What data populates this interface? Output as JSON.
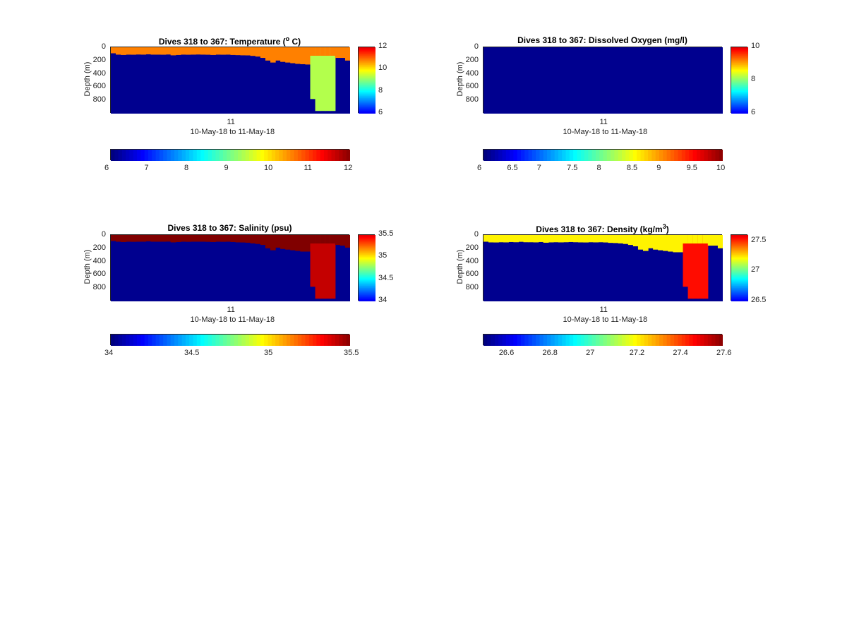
{
  "chart_data": [
    {
      "type": "heatmap",
      "title": "Dives 318 to 367: Temperature (",
      "title_sup": "o",
      "title_suffix": " C)",
      "ylabel": "Depth (m)",
      "xtick": "11",
      "xlabel": "10-May-18 to 11-May-18",
      "yticks": [
        "0",
        "200",
        "400",
        "600",
        "800"
      ],
      "ylim": [
        0,
        1000
      ],
      "clim": [
        6,
        12
      ],
      "vbar_ticks": [
        "12",
        "10",
        "8",
        "6"
      ],
      "hbar_ticks": [
        "6",
        "7",
        "8",
        "9",
        "10",
        "11",
        "12"
      ],
      "surface_value": 10.5,
      "deep_value": 9.3,
      "colormap": "jet",
      "background_color": "#00008f",
      "profile_depths_m": [
        90,
        110,
        115,
        110,
        112,
        108,
        110,
        105,
        110,
        110,
        112,
        108,
        120,
        115,
        110,
        112,
        110,
        108,
        110,
        112,
        115,
        110,
        112,
        110,
        115,
        118,
        120,
        122,
        130,
        140,
        160,
        200,
        230,
        200,
        220,
        230,
        240,
        250,
        255,
        260,
        780,
        960,
        960,
        960,
        960,
        160,
        160,
        200
      ]
    },
    {
      "type": "heatmap",
      "title": "Dives 318 to 367: Dissolved Oxygen (mg/l)",
      "title_sup": "",
      "title_suffix": "",
      "ylabel": "Depth (m)",
      "xtick": "11",
      "xlabel": "10-May-18 to 11-May-18",
      "yticks": [
        "0",
        "200",
        "400",
        "600",
        "800"
      ],
      "ylim": [
        0,
        1000
      ],
      "clim": [
        6,
        10
      ],
      "vbar_ticks": [
        "10",
        "8",
        "6"
      ],
      "hbar_ticks": [
        "6",
        "6.5",
        "7",
        "7.5",
        "8",
        "8.5",
        "9",
        "9.5",
        "10"
      ],
      "colormap": "jet",
      "background_color": "#00008f",
      "profile_depths_m": []
    },
    {
      "type": "heatmap",
      "title": "Dives 318 to 367: Salinity (psu)",
      "title_sup": "",
      "title_suffix": "",
      "ylabel": "Depth (m)",
      "xtick": "11",
      "xlabel": "10-May-18 to 11-May-18",
      "yticks": [
        "0",
        "200",
        "400",
        "600",
        "800"
      ],
      "ylim": [
        0,
        1000
      ],
      "clim": [
        34,
        35.5
      ],
      "vbar_ticks": [
        "35.5",
        "35",
        "34.5",
        "34"
      ],
      "hbar_ticks": [
        "34",
        "34.5",
        "35",
        "35.5"
      ],
      "surface_value": 35.5,
      "deep_value": 35.4,
      "colormap": "jet",
      "background_color": "#00008f",
      "profile_depths_m": [
        90,
        100,
        105,
        100,
        102,
        100,
        100,
        95,
        100,
        100,
        100,
        98,
        110,
        105,
        100,
        102,
        100,
        100,
        100,
        102,
        105,
        100,
        102,
        100,
        105,
        110,
        112,
        115,
        125,
        135,
        150,
        200,
        230,
        190,
        210,
        220,
        230,
        240,
        250,
        250,
        780,
        960,
        960,
        960,
        960,
        150,
        160,
        190
      ]
    },
    {
      "type": "heatmap",
      "title": "Dives 318 to 367: Density (kg/m",
      "title_sup": "3",
      "title_suffix": ")",
      "ylabel": "Depth (m)",
      "xtick": "11",
      "xlabel": "10-May-18 to 11-May-18",
      "yticks": [
        "0",
        "200",
        "400",
        "600",
        "800"
      ],
      "ylim": [
        0,
        1000
      ],
      "clim": [
        26.5,
        27.6
      ],
      "vbar_ticks": [
        "27.5",
        "27",
        "26.5"
      ],
      "hbar_ticks": [
        "26.6",
        "26.8",
        "27",
        "27.2",
        "27.4",
        "27.6"
      ],
      "surface_value": 27.2,
      "deep_value": 27.45,
      "colormap": "jet",
      "background_color": "#00008f",
      "profile_depths_m": [
        100,
        110,
        112,
        108,
        110,
        105,
        108,
        102,
        108,
        108,
        110,
        105,
        115,
        110,
        108,
        110,
        108,
        105,
        108,
        110,
        112,
        108,
        110,
        108,
        112,
        118,
        120,
        125,
        135,
        150,
        170,
        220,
        240,
        200,
        220,
        230,
        240,
        250,
        260,
        260,
        780,
        960,
        960,
        960,
        960,
        160,
        160,
        200
      ]
    }
  ]
}
